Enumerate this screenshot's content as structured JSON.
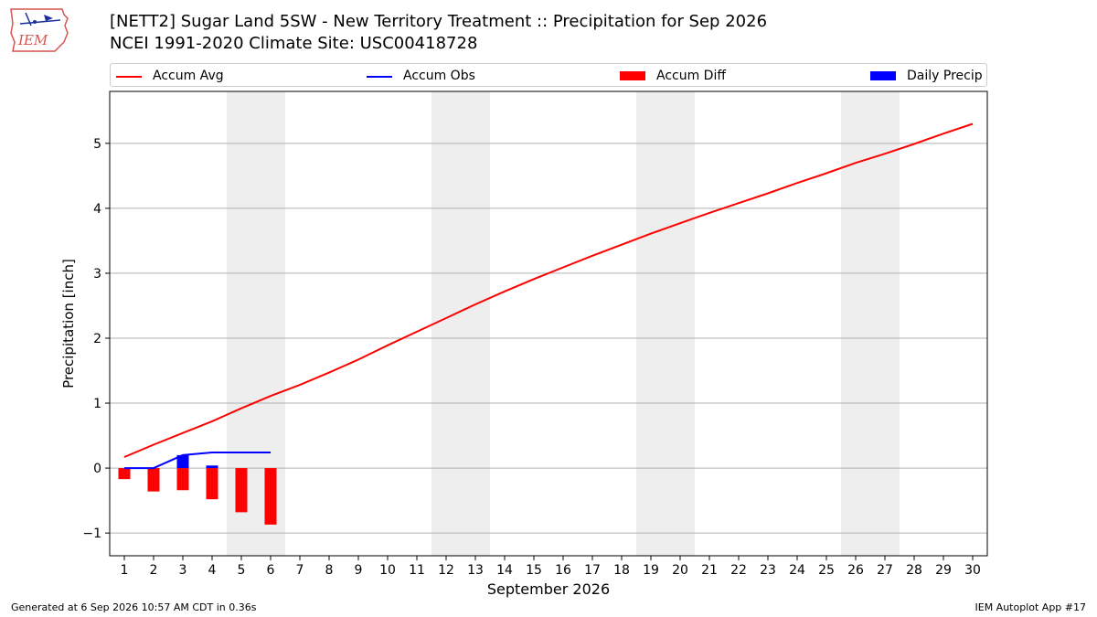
{
  "title_line1": "[NETT2] Sugar Land 5SW - New Territory Treatment :: Precipitation for Sep 2026",
  "title_line2": "NCEI 1991-2020 Climate Site: USC00418728",
  "logo": {
    "text": "IEM",
    "icon": "iem-logo-icon"
  },
  "footer_left": "Generated at 6 Sep 2026 10:57 AM CDT in 0.36s",
  "footer_right": "IEM Autoplot App #17",
  "colors": {
    "avg": "#ff0000",
    "obs": "#0000ff",
    "diff": "#ff0000",
    "daily": "#0000ff",
    "weekend_shade": "#eeeeee",
    "grid": "#b0b0b0"
  },
  "chart_data": {
    "type": "line",
    "xlabel": "September 2026",
    "ylabel": "Precipitation [inch]",
    "categories": [
      "1",
      "2",
      "3",
      "4",
      "5",
      "6",
      "7",
      "8",
      "9",
      "10",
      "11",
      "12",
      "13",
      "14",
      "15",
      "16",
      "17",
      "18",
      "19",
      "20",
      "21",
      "22",
      "23",
      "24",
      "25",
      "26",
      "27",
      "28",
      "29",
      "30"
    ],
    "xlim": [
      0.5,
      30.5
    ],
    "ylim": [
      -1.35,
      5.8
    ],
    "yticks": [
      -1,
      0,
      1,
      2,
      3,
      4,
      5
    ],
    "ytick_labels": [
      "−1",
      "0",
      "1",
      "2",
      "3",
      "4",
      "5"
    ],
    "grid": "horizontal",
    "legend_position": "top",
    "shaded_days": [
      5,
      6,
      12,
      13,
      19,
      20,
      26,
      27
    ],
    "legend": [
      {
        "label": "Accum Avg",
        "kind": "line",
        "color": "#ff0000"
      },
      {
        "label": "Accum Obs",
        "kind": "line",
        "color": "#0000ff"
      },
      {
        "label": "Accum Diff",
        "kind": "bar",
        "color": "#ff0000"
      },
      {
        "label": "Daily Precip",
        "kind": "bar",
        "color": "#0000ff"
      }
    ],
    "series": [
      {
        "name": "Accum Avg",
        "kind": "line",
        "x": [
          1,
          2,
          3,
          4,
          5,
          6,
          7,
          8,
          9,
          10,
          11,
          12,
          13,
          14,
          15,
          16,
          17,
          18,
          19,
          20,
          21,
          22,
          23,
          24,
          25,
          26,
          27,
          28,
          29,
          30
        ],
        "values": [
          0.17,
          0.36,
          0.54,
          0.72,
          0.92,
          1.11,
          1.28,
          1.47,
          1.67,
          1.89,
          2.1,
          2.31,
          2.52,
          2.72,
          2.91,
          3.09,
          3.27,
          3.44,
          3.61,
          3.77,
          3.93,
          4.08,
          4.23,
          4.39,
          4.54,
          4.7,
          4.84,
          4.99,
          5.15,
          5.3
        ]
      },
      {
        "name": "Accum Obs",
        "kind": "line",
        "x": [
          1,
          2,
          3,
          4,
          5,
          6
        ],
        "values": [
          0.0,
          0.0,
          0.2,
          0.24,
          0.24,
          0.24
        ]
      },
      {
        "name": "Accum Diff",
        "kind": "bar",
        "x": [
          1,
          2,
          3,
          4,
          5,
          6
        ],
        "values": [
          -0.17,
          -0.36,
          -0.34,
          -0.48,
          -0.68,
          -0.87
        ]
      },
      {
        "name": "Daily Precip",
        "kind": "bar",
        "x": [
          1,
          2,
          3,
          4,
          5,
          6
        ],
        "values": [
          0.0,
          0.0,
          0.2,
          0.04,
          0.0,
          0.0
        ]
      }
    ]
  }
}
